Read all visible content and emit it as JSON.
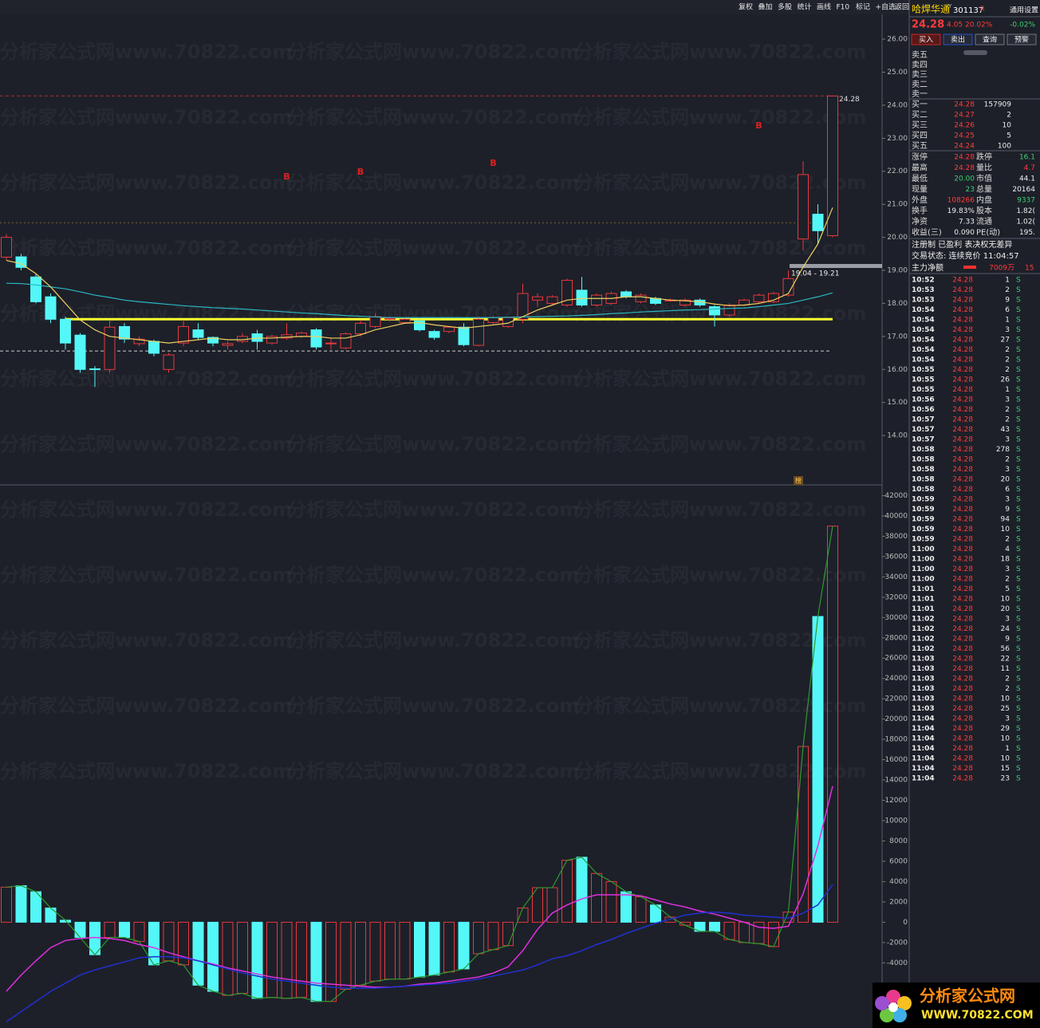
{
  "toolbar": [
    "复权",
    "叠加",
    "多股",
    "统计",
    "画线",
    "F10",
    "标记",
    "+自选",
    "返回"
  ],
  "watermark": "分析家公式网www.70822.com",
  "chart_data": [
    {
      "type": "candlestick",
      "open": [
        19.4,
        19.41,
        18.8,
        18.2,
        17.52,
        17.04,
        16.02,
        16.0,
        17.3,
        16.78,
        16.85,
        16.0,
        16.8,
        17.2,
        16.97,
        16.73,
        16.85,
        17.08,
        16.8,
        16.95,
        17.0,
        17.2,
        16.8,
        16.65,
        17.08,
        17.3,
        17.52,
        17.42,
        17.47,
        17.15,
        17.15,
        17.28,
        16.73,
        17.42,
        17.3,
        17.52,
        18.1,
        18.0,
        17.95,
        18.4,
        17.95,
        18.0,
        18.35,
        18.05,
        18.15,
        18.1,
        17.95,
        18.1,
        17.9,
        17.65,
        17.95,
        18.05,
        18.05,
        18.25,
        19.95,
        20.7,
        20.05
      ],
      "high": [
        20.1,
        19.5,
        18.9,
        18.3,
        17.6,
        17.1,
        16.1,
        17.5,
        17.4,
        17.0,
        16.9,
        16.5,
        17.5,
        17.4,
        17.0,
        16.85,
        17.1,
        17.2,
        17.05,
        17.4,
        17.15,
        17.25,
        16.95,
        17.12,
        17.5,
        17.7,
        17.6,
        17.55,
        17.55,
        17.2,
        17.32,
        17.4,
        17.6,
        17.62,
        17.6,
        18.6,
        18.3,
        18.25,
        18.75,
        18.8,
        18.3,
        18.35,
        18.4,
        18.3,
        18.2,
        18.15,
        18.15,
        18.15,
        17.95,
        18.0,
        18.15,
        18.3,
        18.35,
        19.0,
        22.3,
        21.0,
        24.28
      ],
      "low": [
        19.3,
        19.0,
        18.0,
        17.4,
        16.6,
        15.9,
        15.47,
        15.9,
        16.8,
        16.7,
        16.4,
        15.9,
        16.7,
        16.9,
        16.7,
        16.6,
        16.8,
        16.6,
        16.75,
        16.9,
        16.95,
        16.6,
        16.6,
        16.6,
        17.0,
        17.25,
        17.45,
        17.4,
        17.15,
        16.9,
        17.1,
        16.7,
        16.7,
        17.38,
        17.25,
        17.4,
        17.9,
        17.95,
        17.9,
        17.9,
        17.9,
        17.95,
        18.15,
        18.0,
        17.95,
        18.05,
        17.9,
        17.9,
        17.3,
        17.6,
        17.9,
        18.0,
        18.0,
        18.2,
        19.6,
        19.8,
        20.0
      ],
      "close": [
        20.0,
        19.09,
        18.05,
        17.52,
        16.8,
        16.0,
        16.0,
        17.28,
        16.92,
        16.92,
        16.49,
        16.44,
        17.3,
        16.97,
        16.8,
        16.78,
        17.0,
        16.85,
        17.0,
        17.05,
        17.1,
        16.68,
        16.8,
        17.08,
        17.4,
        17.6,
        17.55,
        17.52,
        17.2,
        16.97,
        17.28,
        16.75,
        17.52,
        17.57,
        17.57,
        18.3,
        18.2,
        18.2,
        18.7,
        17.95,
        18.25,
        18.3,
        18.2,
        18.25,
        18.0,
        18.1,
        18.1,
        17.95,
        17.65,
        17.95,
        18.1,
        18.25,
        18.3,
        18.75,
        21.9,
        20.2,
        24.28
      ],
      "up_color": "#e8383d",
      "down_color": "#54f7f7",
      "ylim": [
        12.53,
        26.75
      ],
      "yticks": [
        {
          "value": 26,
          "label": "26.00"
        },
        {
          "value": 25,
          "label": "25.00"
        },
        {
          "value": 24,
          "label": "24.00"
        },
        {
          "value": 23,
          "label": "23.00"
        },
        {
          "value": 22,
          "label": "22.00"
        },
        {
          "value": 21,
          "label": "21.00"
        },
        {
          "value": 20,
          "label": "20.00"
        },
        {
          "value": 19,
          "label": "19.00"
        },
        {
          "value": 18,
          "label": "18.00"
        },
        {
          "value": 17,
          "label": "17.00"
        },
        {
          "value": 16,
          "label": "16.00"
        },
        {
          "value": 15,
          "label": "15.00"
        },
        {
          "value": 14,
          "label": "14.00"
        }
      ],
      "lines": [
        {
          "color": "#2bb7c4",
          "values": [
            18.61,
            18.6,
            18.56,
            18.5,
            18.44,
            18.35,
            18.25,
            18.18,
            18.1,
            18.05,
            18.01,
            17.97,
            17.93,
            17.9,
            17.87,
            17.85,
            17.83,
            17.8,
            17.77,
            17.74,
            17.71,
            17.69,
            17.66,
            17.63,
            17.61,
            17.59,
            17.57,
            17.57,
            17.57,
            17.57,
            17.57,
            17.57,
            17.57,
            17.57,
            17.58,
            17.59,
            17.6,
            17.61,
            17.62,
            17.64,
            17.66,
            17.69,
            17.71,
            17.74,
            17.76,
            17.78,
            17.8,
            17.81,
            17.83,
            17.85,
            17.86,
            17.9,
            17.95,
            18.0,
            18.1,
            18.2,
            18.32
          ]
        },
        {
          "color": "#f0d060",
          "values": [
            19.3,
            19.2,
            18.9,
            18.5,
            18.0,
            17.5,
            17.2,
            17.0,
            16.95,
            16.9,
            16.85,
            16.8,
            16.85,
            16.9,
            16.95,
            16.9,
            16.9,
            16.95,
            16.95,
            16.98,
            17.0,
            17.0,
            16.95,
            16.95,
            17.05,
            17.2,
            17.3,
            17.4,
            17.42,
            17.35,
            17.3,
            17.25,
            17.3,
            17.35,
            17.4,
            17.6,
            17.8,
            17.95,
            18.1,
            18.15,
            18.15,
            18.15,
            18.2,
            18.2,
            18.15,
            18.1,
            18.08,
            18.05,
            17.98,
            17.93,
            17.95,
            18.0,
            18.1,
            18.3,
            19.1,
            19.8,
            20.9
          ]
        }
      ],
      "levels": [
        {
          "value": 24.28,
          "color": "#b0302c",
          "style": "dashed"
        },
        {
          "value": 20.44,
          "color": "#7a6030",
          "style": "dotted"
        },
        {
          "value": 17.52,
          "color": "#ffff30",
          "style": "solid",
          "from_index": 4
        },
        {
          "value": 16.56,
          "color": "#cccccc",
          "style": "dashed"
        }
      ],
      "signals": {
        "label": "B",
        "color": "#e02020",
        "index": [
          19,
          24,
          33,
          51
        ],
        "price": [
          21.82,
          21.97,
          22.23,
          23.37
        ]
      },
      "annotations": [
        "24.28",
        "19.04 - 19.21",
        "榜"
      ]
    },
    {
      "type": "bar",
      "values": [
        3450,
        3600,
        3000,
        1400,
        200,
        -1500,
        -3200,
        -1500,
        -1500,
        -1900,
        -4200,
        -3800,
        -4200,
        -6200,
        -6800,
        -7200,
        -7000,
        -7500,
        -7400,
        -7500,
        -7400,
        -7800,
        -7800,
        -6600,
        -6200,
        -5800,
        -5600,
        -5600,
        -5400,
        -5200,
        -4900,
        -4600,
        -3100,
        -2700,
        -2300,
        1400,
        3400,
        3400,
        6100,
        6400,
        4800,
        4000,
        3000,
        2500,
        1700,
        500,
        -300,
        -900,
        -900,
        -1700,
        -2000,
        -2100,
        -2400,
        1000,
        17300,
        30100,
        39000
      ],
      "line_color": "#2e9a2e",
      "ylim": [
        -10100,
        42900
      ],
      "yticks": [
        -4000,
        -2000,
        0,
        2000,
        4000,
        6000,
        8000,
        10000,
        12000,
        14000,
        16000,
        18000,
        20000,
        22000,
        24000,
        26000,
        28000,
        30000,
        32000,
        34000,
        36000,
        38000,
        40000,
        42000
      ],
      "lines": [
        {
          "color": "#e030e0",
          "values": [
            -6800,
            -5200,
            -3800,
            -2500,
            -1800,
            -1600,
            -1500,
            -1600,
            -1800,
            -2200,
            -2500,
            -3000,
            -3400,
            -3800,
            -4100,
            -4500,
            -4800,
            -5100,
            -5400,
            -5600,
            -5800,
            -6000,
            -6100,
            -6200,
            -6300,
            -6400,
            -6400,
            -6300,
            -6100,
            -6000,
            -5800,
            -5600,
            -5400,
            -5000,
            -4400,
            -2800,
            -700,
            900,
            1700,
            2300,
            2700,
            2700,
            2700,
            2600,
            2200,
            1800,
            1500,
            1100,
            800,
            400,
            0,
            -500,
            -600,
            -400,
            2800,
            7500,
            13400
          ]
        },
        {
          "color": "#2030d0",
          "values": [
            -9800,
            -8800,
            -7800,
            -6800,
            -6000,
            -5200,
            -4700,
            -4300,
            -3900,
            -3500,
            -3400,
            -3400,
            -3500,
            -3800,
            -4200,
            -4600,
            -5000,
            -5300,
            -5600,
            -5800,
            -6000,
            -6200,
            -6400,
            -6500,
            -6500,
            -6500,
            -6400,
            -6300,
            -6200,
            -6100,
            -6000,
            -5800,
            -5600,
            -5300,
            -5000,
            -4700,
            -4200,
            -3600,
            -3300,
            -2800,
            -2200,
            -1700,
            -1100,
            -600,
            -100,
            300,
            700,
            900,
            1000,
            900,
            700,
            600,
            500,
            400,
            900,
            1700,
            3700
          ]
        }
      ]
    }
  ],
  "quote": {
    "name": "哈焊华通",
    "flag": "Y",
    "code": "301137",
    "r": "R",
    "settings": "通用设置",
    "price": "24.28",
    "change": "4.05",
    "pct": "20.02%",
    "other": "-0.02%",
    "buttons": [
      "买入",
      "卖出",
      "查询",
      "预警"
    ],
    "sell": [
      "卖五",
      "卖四",
      "卖三",
      "卖二",
      "卖一"
    ],
    "buy": [
      [
        "买一",
        "24.28",
        "157909"
      ],
      [
        "买二",
        "24.27",
        "2"
      ],
      [
        "买三",
        "24.26",
        "10"
      ],
      [
        "买四",
        "24.25",
        "5"
      ],
      [
        "买五",
        "24.24",
        "100"
      ]
    ],
    "stats": [
      [
        "涨停",
        "24.28",
        "跌停",
        "16.1"
      ],
      [
        "最高",
        "24.28",
        "量比",
        "4.7"
      ],
      [
        "最低",
        "20.00",
        "市值",
        "44.1"
      ],
      [
        "现量",
        "23",
        "总量",
        "20164"
      ],
      [
        "外盘",
        "108266",
        "内盘",
        "9337"
      ],
      [
        "换手",
        "19.83%",
        "股本",
        "1.82("
      ],
      [
        "净资",
        "7.33",
        "流通",
        "1.02("
      ],
      [
        "收益(三)",
        "0.090",
        "PE(动)",
        "195."
      ]
    ],
    "notes": [
      "注册制 已盈利 表决权无差异",
      "交易状态: 连续竞价 11:04:57"
    ],
    "flow": [
      "主力净额",
      "7009万",
      "15"
    ]
  },
  "ticks": [
    [
      "10:52",
      "24.28",
      "1",
      "S"
    ],
    [
      "10:53",
      "24.28",
      "2",
      "S"
    ],
    [
      "10:53",
      "24.28",
      "9",
      "S"
    ],
    [
      "10:54",
      "24.28",
      "6",
      "S"
    ],
    [
      "10:54",
      "24.28",
      "1",
      "S"
    ],
    [
      "10:54",
      "24.28",
      "3",
      "S"
    ],
    [
      "10:54",
      "24.28",
      "27",
      "S"
    ],
    [
      "10:54",
      "24.28",
      "2",
      "S"
    ],
    [
      "10:54",
      "24.28",
      "2",
      "S"
    ],
    [
      "10:55",
      "24.28",
      "2",
      "S"
    ],
    [
      "10:55",
      "24.28",
      "26",
      "S"
    ],
    [
      "10:55",
      "24.28",
      "1",
      "S"
    ],
    [
      "10:56",
      "24.28",
      "3",
      "S"
    ],
    [
      "10:56",
      "24.28",
      "2",
      "S"
    ],
    [
      "10:57",
      "24.28",
      "2",
      "S"
    ],
    [
      "10:57",
      "24.28",
      "43",
      "S"
    ],
    [
      "10:57",
      "24.28",
      "3",
      "S"
    ],
    [
      "10:58",
      "24.28",
      "278",
      "S"
    ],
    [
      "10:58",
      "24.28",
      "2",
      "S"
    ],
    [
      "10:58",
      "24.28",
      "3",
      "S"
    ],
    [
      "10:58",
      "24.28",
      "20",
      "S"
    ],
    [
      "10:58",
      "24.28",
      "6",
      "S"
    ],
    [
      "10:59",
      "24.28",
      "3",
      "S"
    ],
    [
      "10:59",
      "24.28",
      "9",
      "S"
    ],
    [
      "10:59",
      "24.28",
      "94",
      "S"
    ],
    [
      "10:59",
      "24.28",
      "10",
      "S"
    ],
    [
      "10:59",
      "24.28",
      "2",
      "S"
    ],
    [
      "11:00",
      "24.28",
      "4",
      "S"
    ],
    [
      "11:00",
      "24.28",
      "18",
      "S"
    ],
    [
      "11:00",
      "24.28",
      "3",
      "S"
    ],
    [
      "11:00",
      "24.28",
      "2",
      "S"
    ],
    [
      "11:01",
      "24.28",
      "5",
      "S"
    ],
    [
      "11:01",
      "24.28",
      "10",
      "S"
    ],
    [
      "11:01",
      "24.28",
      "20",
      "S"
    ],
    [
      "11:02",
      "24.28",
      "3",
      "S"
    ],
    [
      "11:02",
      "24.28",
      "24",
      "S"
    ],
    [
      "11:02",
      "24.28",
      "9",
      "S"
    ],
    [
      "11:02",
      "24.28",
      "56",
      "S"
    ],
    [
      "11:03",
      "24.28",
      "22",
      "S"
    ],
    [
      "11:03",
      "24.28",
      "11",
      "S"
    ],
    [
      "11:03",
      "24.28",
      "2",
      "S"
    ],
    [
      "11:03",
      "24.28",
      "2",
      "S"
    ],
    [
      "11:03",
      "24.28",
      "10",
      "S"
    ],
    [
      "11:03",
      "24.28",
      "25",
      "S"
    ],
    [
      "11:04",
      "24.28",
      "3",
      "S"
    ],
    [
      "11:04",
      "24.28",
      "29",
      "S"
    ],
    [
      "11:04",
      "24.28",
      "10",
      "S"
    ],
    [
      "11:04",
      "24.28",
      "1",
      "S"
    ],
    [
      "11:04",
      "24.28",
      "10",
      "S"
    ],
    [
      "11:04",
      "24.28",
      "15",
      "S"
    ],
    [
      "11:04",
      "24.28",
      "23",
      "S"
    ]
  ],
  "logo": {
    "title": "分析家公式网",
    "url": "WWW.70822.COM"
  }
}
